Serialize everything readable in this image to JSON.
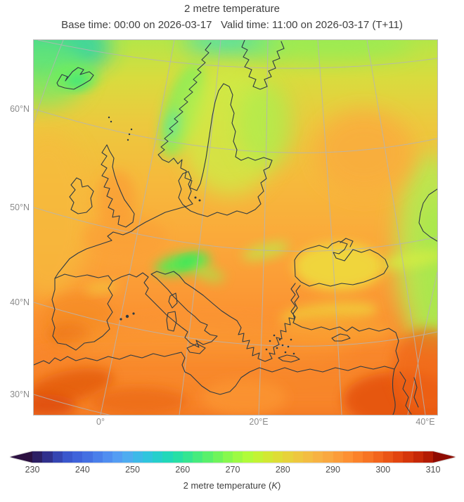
{
  "header": {
    "title": "2 metre temperature",
    "subtitle": "Base time: 00:00 on 2026-03-17   Valid time: 11:00 on 2026-03-17 (T+11)"
  },
  "map": {
    "lat_labels": [
      "60°N",
      "50°N",
      "40°N",
      "30°N"
    ],
    "lon_labels": [
      "0°",
      "20°E",
      "40°E"
    ]
  },
  "colorbar": {
    "ticks": [
      "230",
      "240",
      "250",
      "260",
      "270",
      "280",
      "290",
      "300",
      "310"
    ],
    "label_prefix": "2 metre temperature (",
    "label_unit": "K",
    "label_suffix": ")",
    "left_arrow_color": "#2b1040",
    "right_arrow_color": "#8e0b02",
    "segment_colors": [
      "#2c1f63",
      "#30308c",
      "#3545b2",
      "#3a57cd",
      "#3f63da",
      "#4470e2",
      "#4a7fea",
      "#508ef0",
      "#549df3",
      "#4facf0",
      "#3db9e8",
      "#2fc5dd",
      "#25cfcc",
      "#21d8b9",
      "#27dfa5",
      "#35e591",
      "#46eb7d",
      "#59f06b",
      "#6ff45b",
      "#87f84e",
      "#9dfa43",
      "#b1fb3a",
      "#c3f334",
      "#d2e833",
      "#dedd36",
      "#e7d23b",
      "#eec73f",
      "#f3bd42",
      "#f7b243",
      "#f9a840",
      "#fb9c3a",
      "#fd9033",
      "#fb822b",
      "#f77424",
      "#f2651d",
      "#ea5516",
      "#e24510",
      "#d5360b",
      "#c62807",
      "#b21b04"
    ]
  }
}
